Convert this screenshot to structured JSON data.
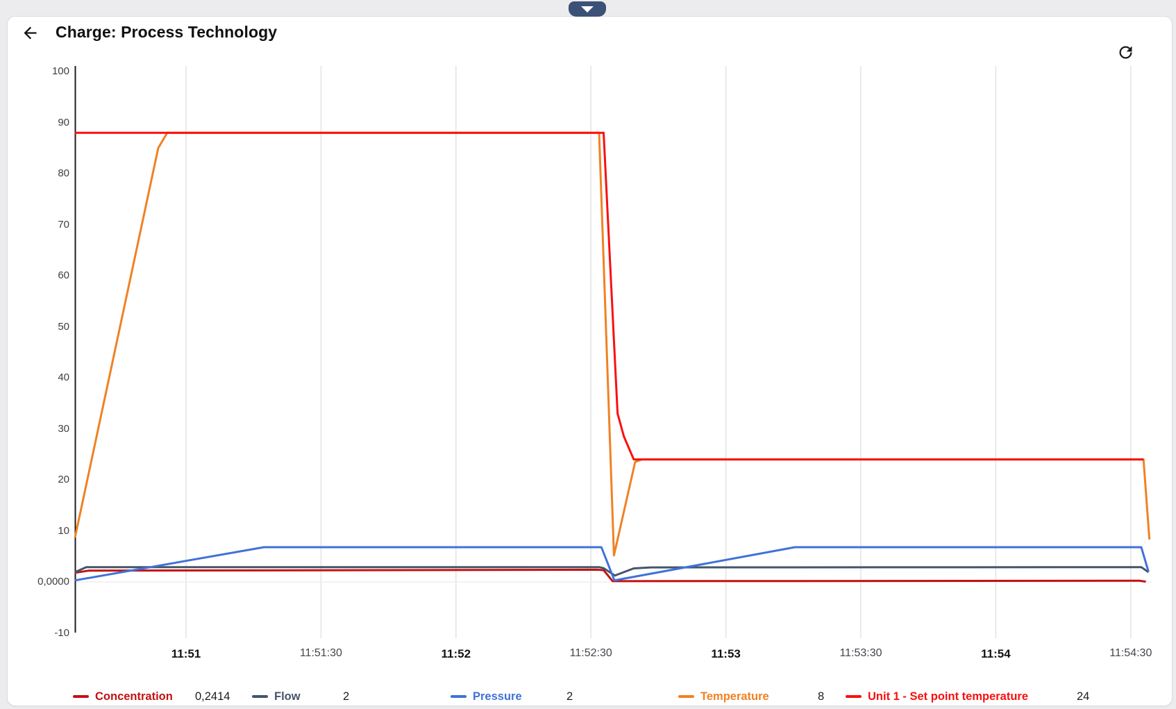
{
  "header": {
    "title": "Charge: Process Technology",
    "back_icon": "arrow-left-icon",
    "refresh_icon": "refresh-icon"
  },
  "top_tab": {
    "icon": "chevron-down-icon"
  },
  "chart_data": {
    "type": "line",
    "title": "Charge: Process Technology",
    "x_axis": {
      "start_time": "11:50:35",
      "interval_seconds": 30,
      "ticks": [
        {
          "label": "11:51",
          "bold": true
        },
        {
          "label": "11:51:30",
          "bold": false
        },
        {
          "label": "11:52",
          "bold": true
        },
        {
          "label": "11:52:30",
          "bold": false
        },
        {
          "label": "11:53",
          "bold": true
        },
        {
          "label": "11:53:30",
          "bold": false
        },
        {
          "label": "11:54",
          "bold": true
        },
        {
          "label": "11:54:30",
          "bold": false
        }
      ]
    },
    "y_axis": {
      "min": -10,
      "max": 100,
      "ticks": [
        {
          "v": 100,
          "label": "100"
        },
        {
          "v": 90,
          "label": "90"
        },
        {
          "v": 80,
          "label": "80"
        },
        {
          "v": 70,
          "label": "70"
        },
        {
          "v": 60,
          "label": "60"
        },
        {
          "v": 50,
          "label": "50"
        },
        {
          "v": 40,
          "label": "40"
        },
        {
          "v": 30,
          "label": "30"
        },
        {
          "v": 20,
          "label": "20"
        },
        {
          "v": 10,
          "label": "10"
        },
        {
          "v": 0,
          "label": "0,0000"
        },
        {
          "v": -10,
          "label": "-10"
        }
      ]
    },
    "grid": "vertical-plus-zero-line",
    "legend_position": "bottom",
    "series": [
      {
        "name": "Concentration",
        "color": "#c41111",
        "legend_value": "0,2414",
        "points": [
          [
            0,
            1.8
          ],
          [
            3,
            2.2
          ],
          [
            116,
            2.4
          ],
          [
            117.5,
            2.3
          ],
          [
            119.5,
            0.15
          ],
          [
            200,
            0.2
          ],
          [
            236.5,
            0.24
          ],
          [
            238,
            0.05
          ]
        ]
      },
      {
        "name": "Flow",
        "color": "#44556a",
        "legend_value": "2",
        "points": [
          [
            0,
            1.9
          ],
          [
            2.5,
            2.9
          ],
          [
            116.5,
            2.9
          ],
          [
            117.5,
            2.7
          ],
          [
            120,
            1.25
          ],
          [
            124.2,
            2.65
          ],
          [
            128,
            2.85
          ],
          [
            237,
            2.9
          ],
          [
            238.6,
            1.9
          ]
        ]
      },
      {
        "name": "Pressure",
        "color": "#3f72d8",
        "legend_value": "2",
        "points": [
          [
            0,
            0.3
          ],
          [
            42,
            6.8
          ],
          [
            117,
            6.8
          ],
          [
            119.9,
            0.3
          ],
          [
            160,
            6.8
          ],
          [
            237,
            6.8
          ],
          [
            238.6,
            2
          ]
        ]
      },
      {
        "name": "Temperature",
        "color": "#f08122",
        "legend_value": "8",
        "points": [
          [
            0,
            8.7
          ],
          [
            18.5,
            85
          ],
          [
            20.5,
            88
          ],
          [
            116.5,
            88
          ],
          [
            119.8,
            5.2
          ],
          [
            124.5,
            23.5
          ],
          [
            126,
            24
          ],
          [
            237.5,
            24
          ],
          [
            238.8,
            8.3
          ]
        ]
      },
      {
        "name": "Unit 1 - Set point temperature",
        "color": "#fa0f0f",
        "legend_value": "24",
        "points": [
          [
            0,
            88
          ],
          [
            117.5,
            88
          ],
          [
            120.6,
            33
          ],
          [
            122,
            28.5
          ],
          [
            124.2,
            24
          ],
          [
            237.5,
            24
          ]
        ]
      }
    ]
  }
}
